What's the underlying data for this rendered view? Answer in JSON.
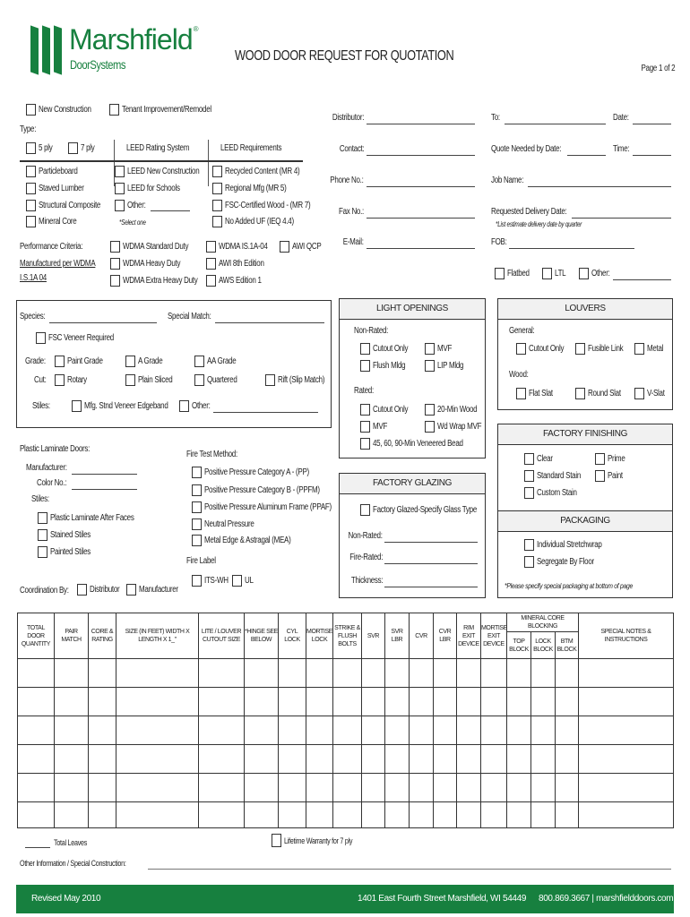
{
  "brand": {
    "name": "Marshfield",
    "sub": "DoorSystems",
    "reg": "®",
    "color": "#17803f"
  },
  "header": {
    "title": "WOOD DOOR REQUEST FOR QUOTATION",
    "page": "Page 1 of 2"
  },
  "project": {
    "new_construction": "New Construction",
    "tenant": "Tenant Improvement/Remodel"
  },
  "type": {
    "label": "Type:",
    "ply5": "5 ply",
    "ply7": "7 ply",
    "leed_rating": "LEED Rating System",
    "leed_req": "LEED Requirements",
    "cores": [
      "Particleboard",
      "Staved Lumber",
      "Structural Composite",
      "Mineral Core"
    ],
    "rating": [
      "LEED New Construction",
      "LEED for Schools",
      "Other:"
    ],
    "select_one": "*Select one",
    "requirements": [
      "Recycled Content (MR 4)",
      "Regional Mfg (MR 5)",
      "FSC-Certified Wood - (MR 7)",
      "No Added UF (IEQ 4.4)"
    ]
  },
  "performance": {
    "label": "Performance Criteria:",
    "note1": "Manufactured per WDMA",
    "note2": "I.S.1A 04",
    "col1": [
      "WDMA Standard Duty",
      "WDMA Heavy Duty",
      "WDMA Extra Heavy Duty"
    ],
    "col2": [
      "WDMA IS.1A-04",
      "AWI 8th Edition",
      "AWS Edition 1"
    ],
    "awi_qcp": "AWI QCP"
  },
  "contact": {
    "distributor": "Distributor:",
    "contact": "Contact:",
    "phone": "Phone No.:",
    "fax": "Fax No.:",
    "email": "E-Mail:",
    "to": "To:",
    "date": "Date:",
    "quote_needed": "Quote Needed by Date:",
    "time": "Time:",
    "job_name": "Job Name:",
    "delivery": "Requested Delivery Date:",
    "delivery_note": "*List estimate delivery date by quarter",
    "fob": "FOB:",
    "flatbed": "Flatbed",
    "ltl": "LTL",
    "other": "Other:"
  },
  "species": {
    "species": "Species:",
    "special_match": "Special Match:",
    "fsc": "FSC Veneer Required",
    "grade": "Grade:",
    "grades": [
      "Paint Grade",
      "A Grade",
      "AA Grade"
    ],
    "cut": "Cut:",
    "cuts": [
      "Rotary",
      "Plain Sliced",
      "Quartered",
      "Rift (Slip Match)"
    ],
    "stiles": "Stiles:",
    "stile_opts": [
      "Mfg. Stnd Veneer Edgeband",
      "Other:"
    ]
  },
  "laminate": {
    "label": "Plastic Laminate Doors:",
    "manufacturer": "Manufacturer:",
    "color": "Color No.:",
    "stiles": "Stiles:",
    "opts": [
      "Plastic Laminate After Faces",
      "Stained Stiles",
      "Painted Stiles"
    ],
    "coord": "Coordination By:",
    "coord_opts": [
      "Distributor",
      "Manufacturer"
    ]
  },
  "fire": {
    "method": "Fire Test Method:",
    "opts": [
      "Positive Pressure Category A - (PP)",
      "Positive Pressure Category B - (PPFM)",
      "Positive Pressure Aluminum Frame (PPAF)",
      "Neutral Pressure",
      "Metal Edge & Astragal (MEA)"
    ],
    "label": "Fire Label",
    "labels": [
      "ITS-WH",
      "UL"
    ]
  },
  "light": {
    "title": "LIGHT OPENINGS",
    "non_rated": "Non-Rated:",
    "nr_opts": [
      "Cutout Only",
      "MVF",
      "Flush Mldg",
      "LIP Mldg"
    ],
    "rated": "Rated:",
    "r_opts": [
      "Cutout Only",
      "20-Min Wood",
      "MVF",
      "Wd Wrap MVF",
      "45, 60, 90-Min Veneered Bead"
    ]
  },
  "louvers": {
    "title": "LOUVERS",
    "general": "General:",
    "g_opts": [
      "Cutout Only",
      "Fusible Link",
      "Metal"
    ],
    "wood": "Wood:",
    "w_opts": [
      "Flat Slat",
      "Round Slat",
      "V-Slat"
    ]
  },
  "glazing": {
    "title": "FACTORY GLAZING",
    "opt": "Factory Glazed-Specify Glass Type",
    "non_rated": "Non-Rated:",
    "fire_rated": "Fire-Rated:",
    "thickness": "Thickness:"
  },
  "finishing": {
    "title": "FACTORY FINISHING",
    "opts": [
      "Clear",
      "Standard Stain",
      "Custom Stain",
      "Prime",
      "Paint"
    ]
  },
  "packaging": {
    "title": "PACKAGING",
    "opts": [
      "Individual Stretchwrap",
      "Segregate By Floor"
    ],
    "note": "*Please specify special packaging at bottom of page"
  },
  "table": {
    "cols": [
      "TOTAL DOOR QUANTITY",
      "PAIR MATCH",
      "CORE & RATING",
      "SIZE (IN FEET) WIDTH X LENGTH X 1_\"",
      "LITE / LOUVER CUTOUT SIZE",
      "*HINGE SEE BELOW",
      "CYL LOCK",
      "MORTISE LOCK",
      "STRIKE & FLUSH BOLTS",
      "SVR",
      "SVR LBR",
      "CVR",
      "CVR LBR",
      "RIM EXIT DEVICE",
      "MORTISE EXIT DEVICE"
    ],
    "blocking": "MINERAL CORE BLOCKING",
    "blocking_cols": [
      "TOP BLOCK",
      "LOCK BLOCK",
      "BTM BLOCK"
    ],
    "notes": "SPECIAL NOTES & INSTRUCTIONS"
  },
  "bottom": {
    "total_leaves": "Total Leaves",
    "warranty": "Lifetime Warranty for 7 ply",
    "other_info": "Other Information / Special Construction:"
  },
  "footer": {
    "revised": "Revised May 2010",
    "address": "1401 East Fourth Street  Marshfield, WI 54449",
    "contact": "800.869.3667  |  marshfielddoors.com"
  }
}
